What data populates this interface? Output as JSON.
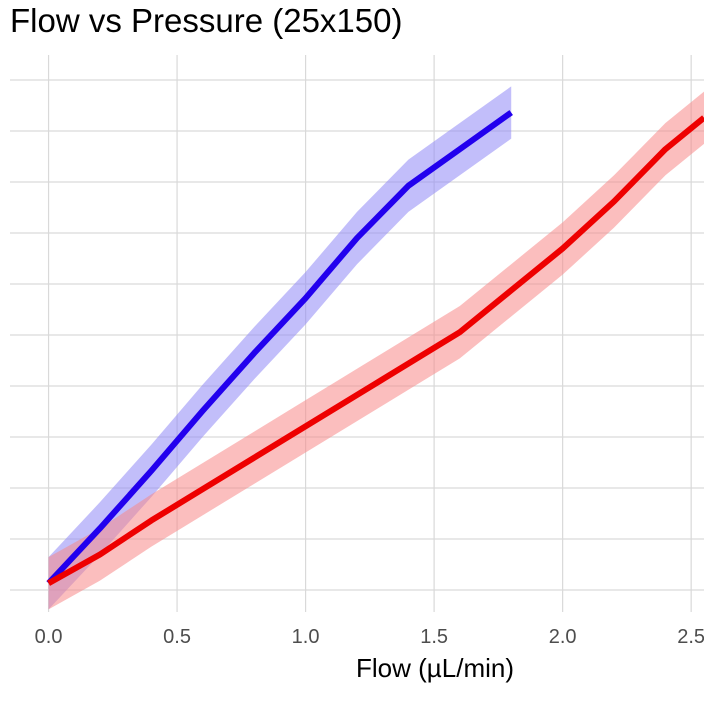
{
  "chart_data": {
    "type": "line",
    "title": "Flow vs Pressure (25x150)",
    "xlabel": "Flow (µL/min)",
    "ylabel": "",
    "x_ticks": [
      "0.0",
      "0.5",
      "1.0",
      "1.5",
      "2.0",
      "2.5"
    ],
    "x_tick_values": [
      0,
      0.5,
      1.0,
      1.5,
      2.0,
      2.5
    ],
    "y_gridlines": 11,
    "xlim": [
      -0.15,
      2.55
    ],
    "ylim": [
      -0.55,
      10.1
    ],
    "grid": true,
    "legend": "none",
    "series": [
      {
        "color": "#2200ee",
        "band_color": "#8f88f5",
        "x": [
          0,
          0.2,
          0.4,
          0.6,
          0.8,
          1.0,
          1.2,
          1.4,
          1.6,
          1.8
        ],
        "y": [
          0,
          1.05,
          2.15,
          3.3,
          4.4,
          5.45,
          6.6,
          7.6,
          8.3,
          9.0
        ],
        "band": [
          0.5,
          0.5,
          0.5,
          0.5,
          0.5,
          0.5,
          0.5,
          0.5,
          0.5,
          0.5
        ]
      },
      {
        "color": "#ee0000",
        "band_color": "#f88888",
        "x": [
          0,
          0.2,
          0.4,
          0.6,
          0.8,
          1.0,
          1.2,
          1.4,
          1.6,
          1.8,
          2.0,
          2.2,
          2.4,
          2.55
        ],
        "y": [
          0,
          0.55,
          1.2,
          1.8,
          2.4,
          3.0,
          3.6,
          4.2,
          4.8,
          5.6,
          6.4,
          7.3,
          8.3,
          8.9
        ],
        "band": [
          0.5,
          0.5,
          0.5,
          0.5,
          0.5,
          0.5,
          0.5,
          0.5,
          0.5,
          0.5,
          0.5,
          0.5,
          0.5,
          0.5
        ]
      }
    ]
  }
}
